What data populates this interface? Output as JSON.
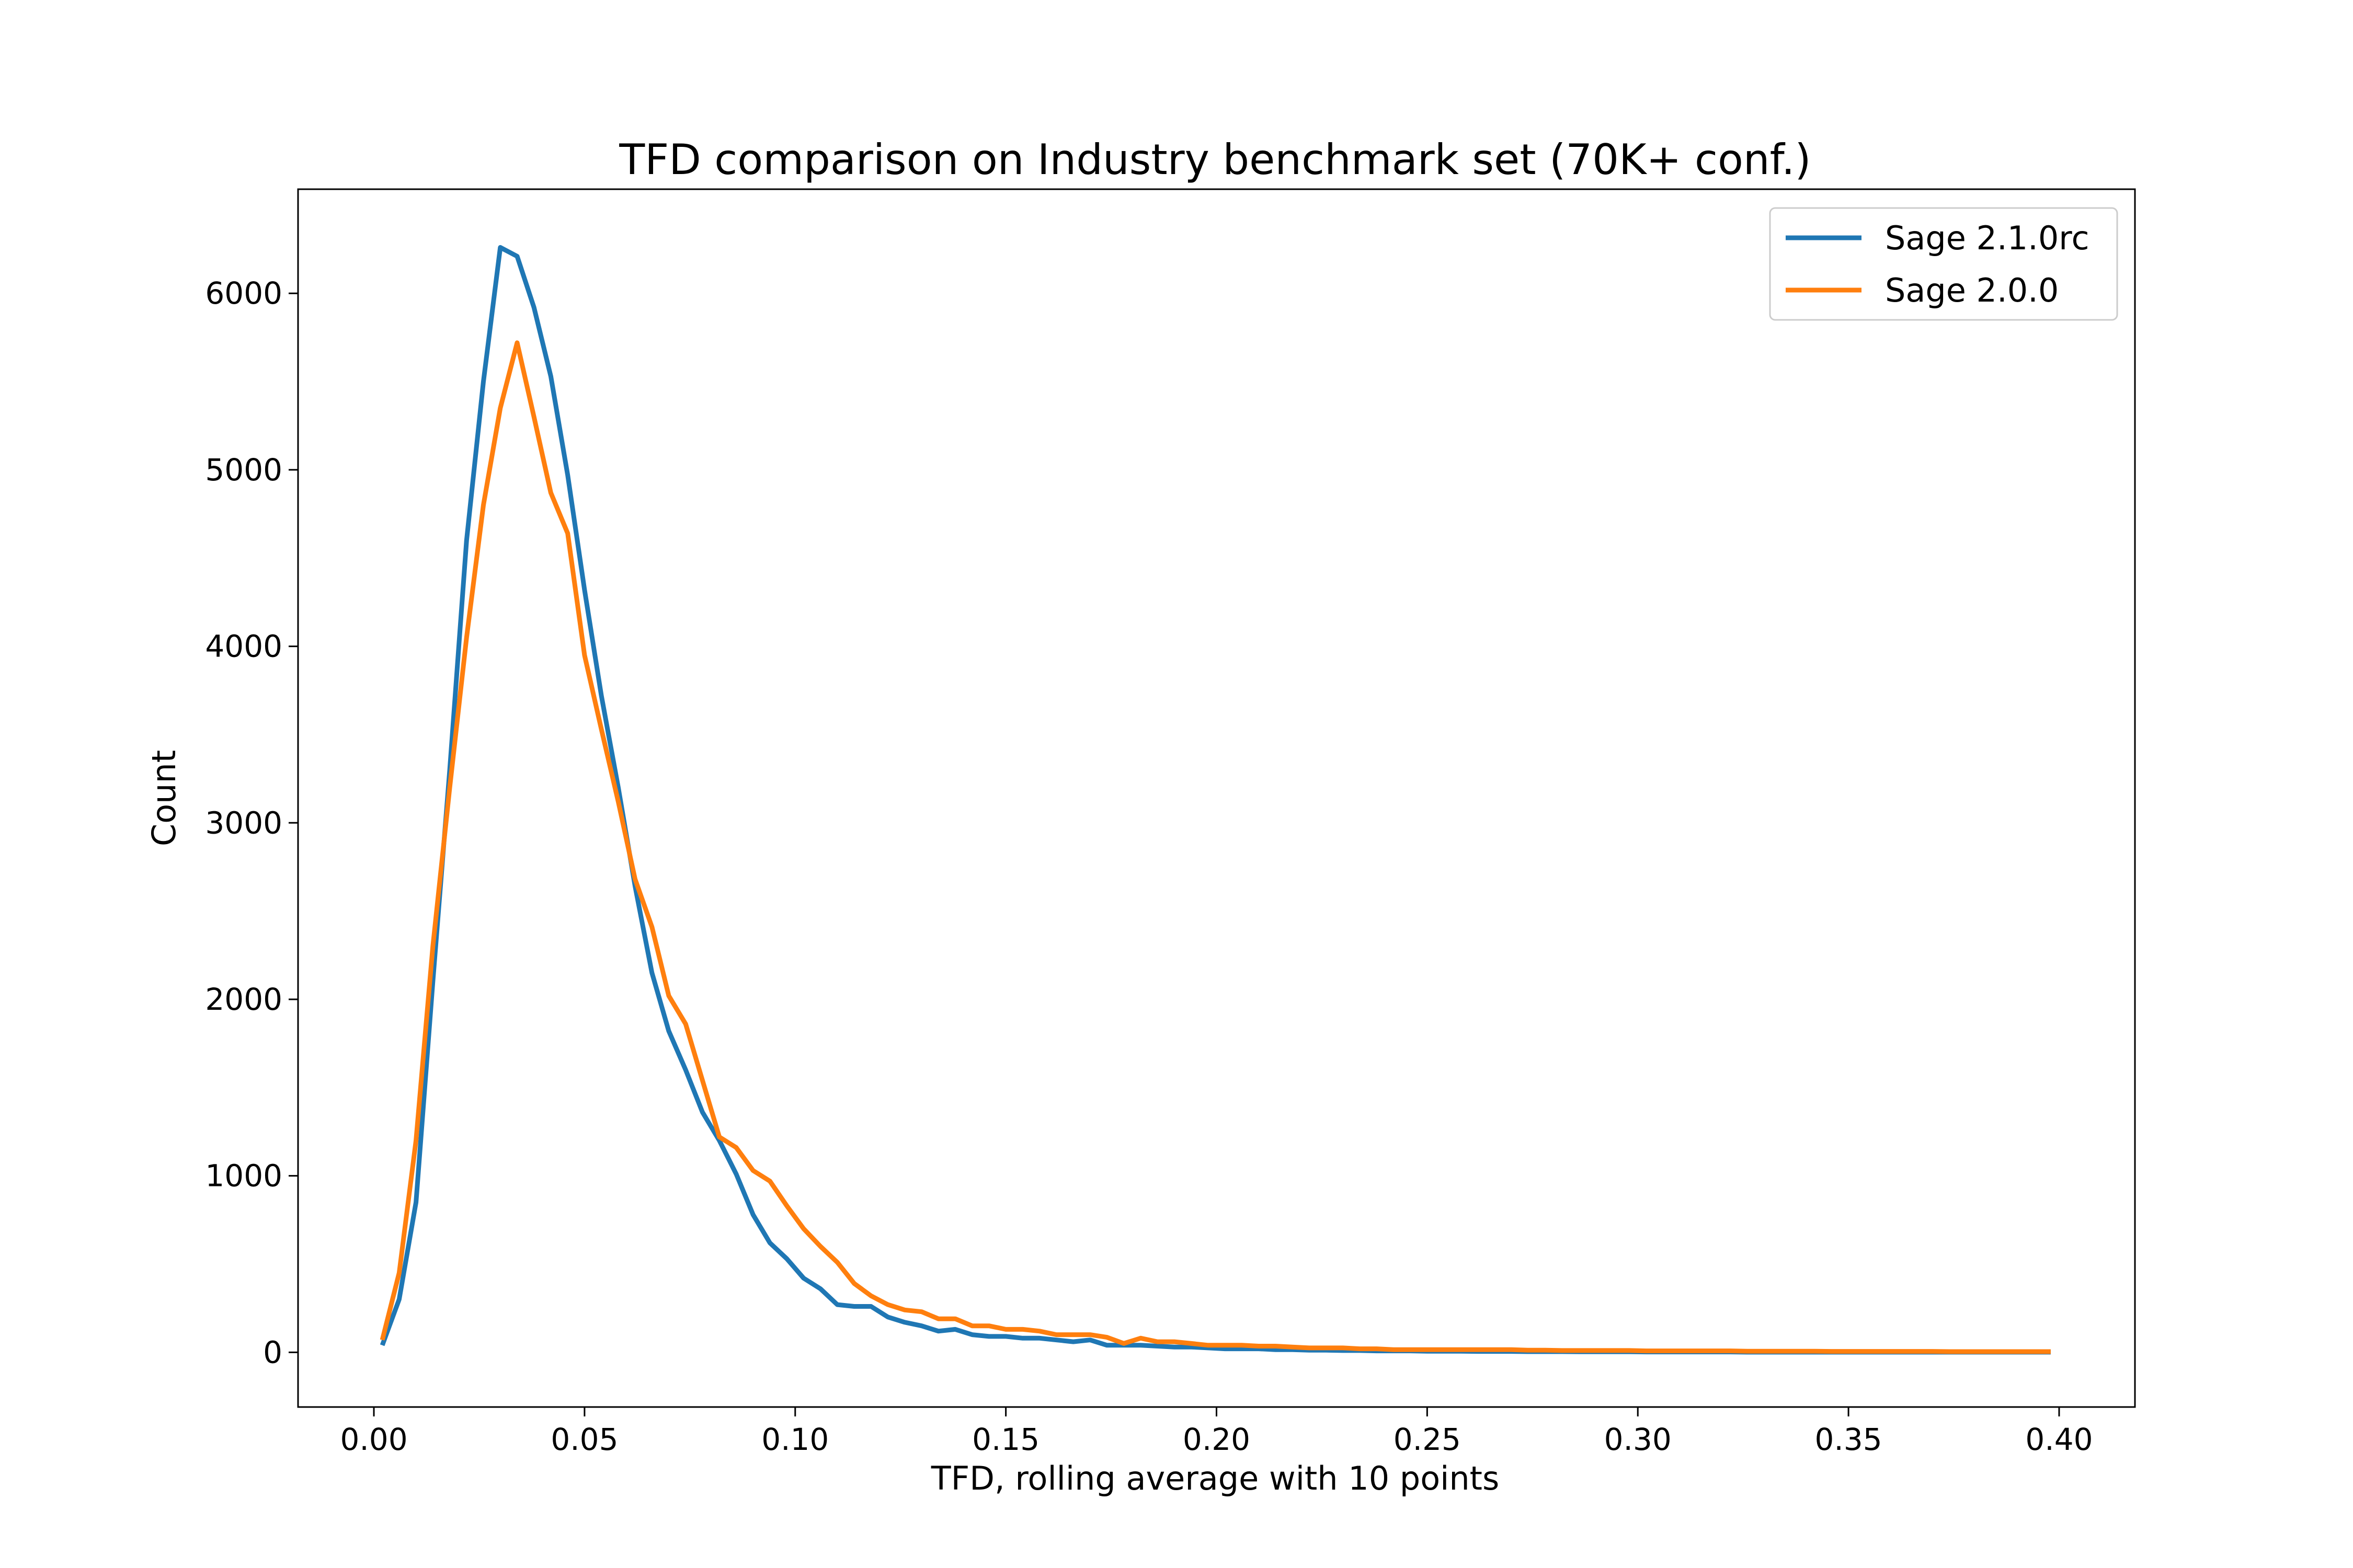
{
  "chart_data": {
    "type": "line",
    "title": "TFD comparison on Industry benchmark set (70K+ conf.)",
    "xlabel": "TFD, rolling average with 10 points",
    "ylabel": "Count",
    "xlim": [
      -0.018,
      0.418
    ],
    "ylim": [
      -310,
      6590
    ],
    "xticks": [
      0.0,
      0.05,
      0.1,
      0.15,
      0.2,
      0.25,
      0.3,
      0.35,
      0.4
    ],
    "xtick_labels": [
      "0.00",
      "0.05",
      "0.10",
      "0.15",
      "0.20",
      "0.25",
      "0.30",
      "0.35",
      "0.40"
    ],
    "yticks": [
      0,
      1000,
      2000,
      3000,
      4000,
      5000,
      6000
    ],
    "ytick_labels": [
      "0",
      "1000",
      "2000",
      "3000",
      "4000",
      "5000",
      "6000"
    ],
    "grid": false,
    "legend_position": "top-right",
    "series": [
      {
        "name": "Sage 2.1.0rc",
        "color": "#1f77b4",
        "x": [
          0.002,
          0.006,
          0.01,
          0.014,
          0.018,
          0.022,
          0.026,
          0.03,
          0.034,
          0.038,
          0.042,
          0.046,
          0.05,
          0.054,
          0.058,
          0.062,
          0.066,
          0.07,
          0.074,
          0.078,
          0.082,
          0.086,
          0.09,
          0.094,
          0.098,
          0.102,
          0.106,
          0.11,
          0.114,
          0.118,
          0.122,
          0.126,
          0.13,
          0.134,
          0.138,
          0.142,
          0.146,
          0.15,
          0.154,
          0.158,
          0.162,
          0.166,
          0.17,
          0.174,
          0.178,
          0.182,
          0.186,
          0.19,
          0.194,
          0.198,
          0.202,
          0.206,
          0.21,
          0.214,
          0.218,
          0.222,
          0.226,
          0.23,
          0.234,
          0.238,
          0.242,
          0.246,
          0.25,
          0.254,
          0.258,
          0.262,
          0.266,
          0.27,
          0.274,
          0.278,
          0.282,
          0.286,
          0.29,
          0.294,
          0.298,
          0.302,
          0.306,
          0.31,
          0.314,
          0.318,
          0.322,
          0.326,
          0.33,
          0.334,
          0.338,
          0.342,
          0.346,
          0.35,
          0.354,
          0.358,
          0.362,
          0.366,
          0.37,
          0.374,
          0.378,
          0.382,
          0.386,
          0.39,
          0.394,
          0.398
        ],
        "y": [
          40,
          300,
          850,
          2100,
          3300,
          4600,
          5500,
          6260,
          6210,
          5920,
          5530,
          4970,
          4320,
          3720,
          3200,
          2640,
          2150,
          1820,
          1600,
          1360,
          1200,
          1010,
          780,
          620,
          530,
          420,
          360,
          270,
          260,
          260,
          200,
          170,
          150,
          120,
          130,
          100,
          90,
          90,
          80,
          80,
          70,
          60,
          70,
          40,
          40,
          40,
          35,
          30,
          30,
          25,
          20,
          20,
          20,
          15,
          15,
          12,
          12,
          10,
          10,
          8,
          8,
          8,
          6,
          6,
          6,
          5,
          5,
          5,
          4,
          4,
          4,
          3,
          3,
          3,
          3,
          2,
          2,
          2,
          2,
          2,
          2,
          1,
          1,
          1,
          1,
          1,
          1,
          1,
          1,
          1,
          1,
          1,
          1,
          1,
          1,
          1,
          1,
          1,
          1,
          1
        ]
      },
      {
        "name": "Sage 2.0.0",
        "color": "#ff7f0e",
        "x": [
          0.002,
          0.006,
          0.01,
          0.014,
          0.018,
          0.022,
          0.026,
          0.03,
          0.034,
          0.038,
          0.042,
          0.046,
          0.05,
          0.054,
          0.058,
          0.062,
          0.066,
          0.07,
          0.074,
          0.078,
          0.082,
          0.086,
          0.09,
          0.094,
          0.098,
          0.102,
          0.106,
          0.11,
          0.114,
          0.118,
          0.122,
          0.126,
          0.13,
          0.134,
          0.138,
          0.142,
          0.146,
          0.15,
          0.154,
          0.158,
          0.162,
          0.166,
          0.17,
          0.174,
          0.178,
          0.182,
          0.186,
          0.19,
          0.194,
          0.198,
          0.202,
          0.206,
          0.21,
          0.214,
          0.218,
          0.222,
          0.226,
          0.23,
          0.234,
          0.238,
          0.242,
          0.246,
          0.25,
          0.254,
          0.258,
          0.262,
          0.266,
          0.27,
          0.274,
          0.278,
          0.282,
          0.286,
          0.29,
          0.294,
          0.298,
          0.302,
          0.306,
          0.31,
          0.314,
          0.318,
          0.322,
          0.326,
          0.33,
          0.334,
          0.338,
          0.342,
          0.346,
          0.35,
          0.354,
          0.358,
          0.362,
          0.366,
          0.37,
          0.374,
          0.378,
          0.382,
          0.386,
          0.39,
          0.394,
          0.398
        ],
        "y": [
          70,
          450,
          1200,
          2300,
          3200,
          4050,
          4800,
          5350,
          5720,
          5300,
          4870,
          4640,
          3950,
          3530,
          3120,
          2680,
          2410,
          2020,
          1860,
          1540,
          1220,
          1160,
          1030,
          970,
          830,
          700,
          600,
          510,
          390,
          320,
          270,
          240,
          230,
          190,
          190,
          150,
          150,
          130,
          130,
          120,
          100,
          100,
          100,
          85,
          50,
          80,
          60,
          60,
          50,
          40,
          40,
          40,
          35,
          35,
          30,
          25,
          25,
          25,
          20,
          20,
          15,
          15,
          15,
          15,
          15,
          15,
          15,
          15,
          12,
          12,
          10,
          10,
          10,
          10,
          10,
          8,
          8,
          8,
          8,
          8,
          8,
          6,
          6,
          6,
          6,
          6,
          5,
          5,
          5,
          5,
          5,
          5,
          5,
          4,
          4,
          4,
          4,
          4,
          4,
          4
        ]
      }
    ]
  }
}
